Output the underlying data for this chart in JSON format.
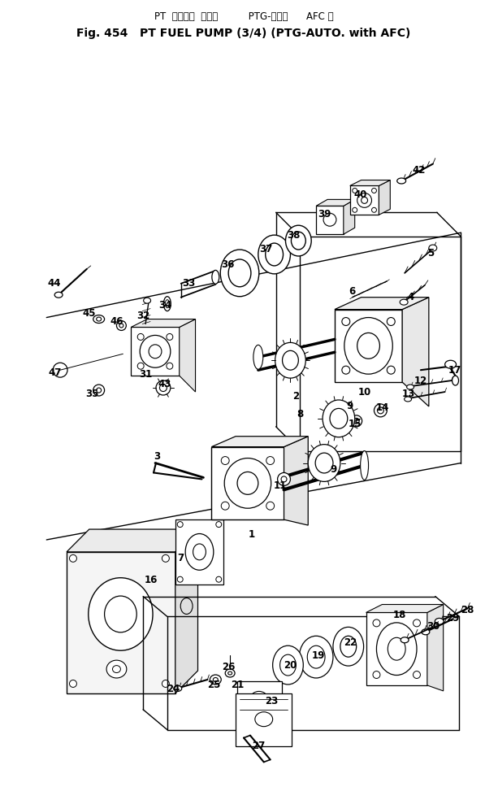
{
  "title_line1": "PT  フュエル  ポンプ          PTG-オート      AFC 付",
  "title_line2": "Fig. 454   PT FUEL PUMP (3/4) (PTG-AUTO. with AFC)",
  "bg_color": "#ffffff",
  "line_color": "#000000",
  "fig_width": 5.97,
  "fig_height": 9.73,
  "dpi": 100
}
